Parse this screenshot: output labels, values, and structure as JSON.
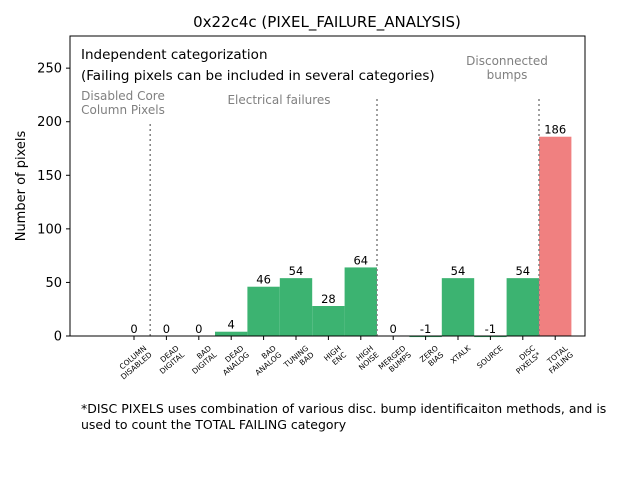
{
  "chart_data": {
    "type": "bar",
    "title": "0x22c4c (PIXEL_FAILURE_ANALYSIS)",
    "xlabel": "",
    "ylabel": "Number of pixels",
    "ylim": [
      0,
      280
    ],
    "yticks": [
      0,
      50,
      100,
      150,
      200,
      250
    ],
    "grid": false,
    "categories": [
      "COLUMN\nDISABLED",
      "DEAD\nDIGITAL",
      "BAD\nDIGITAL",
      "DEAD\nANALOG",
      "BAD\nANALOG",
      "TUNING\nBAD",
      "HIGH\nENC",
      "HIGH\nNOISE",
      "MERGED\nBUMPS",
      "ZERO\nBIAS",
      "XTALK",
      "SOURCE",
      "DISC\nPIXELS*",
      "TOTAL\nFAILING"
    ],
    "values": [
      0,
      0,
      0,
      4,
      46,
      54,
      28,
      64,
      0,
      -1,
      54,
      -1,
      54,
      186
    ],
    "data_labels": [
      "0",
      "0",
      "0",
      "4",
      "46",
      "54",
      "28",
      "64",
      "0",
      "-1",
      "54",
      "-1",
      "54",
      "186"
    ],
    "bar_colors": [
      "#3cb371",
      "#3cb371",
      "#3cb371",
      "#3cb371",
      "#3cb371",
      "#3cb371",
      "#3cb371",
      "#3cb371",
      "#3cb371",
      "#3cb371",
      "#3cb371",
      "#3cb371",
      "#3cb371",
      "#f08080"
    ],
    "separators_after": [
      0,
      7,
      12
    ],
    "annotations": {
      "main": "Independent categorization",
      "sub": "(Failing pixels can be included in several categories)",
      "group_disabled": "Disabled Core\nColumn Pixels",
      "group_electrical": "Electrical failures",
      "group_disconnected": "Disconnected\nbumps"
    },
    "colors": {
      "bar": "#3cb371",
      "total": "#f08080",
      "group_label": "#808080",
      "separator": "#808080"
    }
  },
  "footnote": "*DISC PIXELS uses combination of various disc. bump identificaiton methods, and is\nused to count the TOTAL FAILING category"
}
